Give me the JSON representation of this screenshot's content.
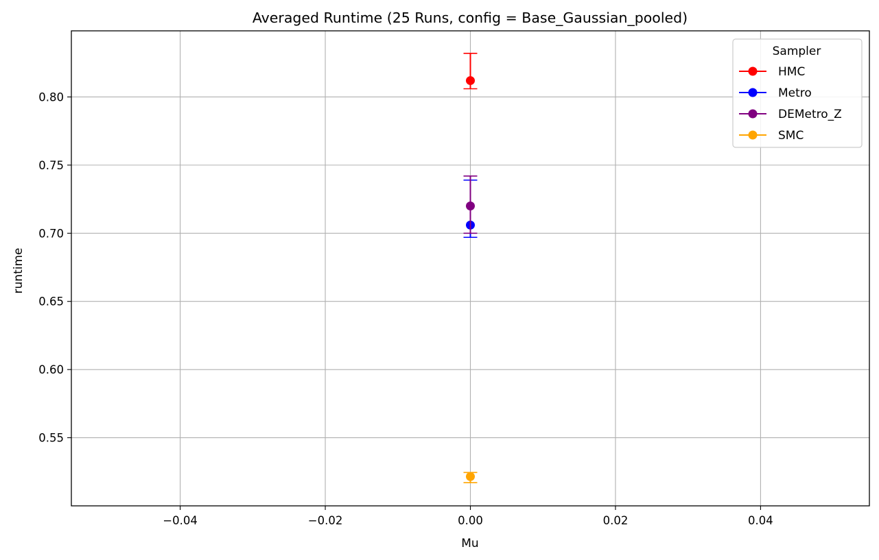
{
  "chart_data": {
    "type": "scatter",
    "title": "Averaged Runtime (25 Runs, config = Base_Gaussian_pooled)",
    "xlabel": "Mu",
    "ylabel": "runtime",
    "xlim": [
      -0.055,
      0.055
    ],
    "ylim": [
      0.5,
      0.8485
    ],
    "grid": true,
    "xticks": [
      -0.04,
      -0.02,
      0.0,
      0.02,
      0.04
    ],
    "xtick_labels": [
      "−0.04",
      "−0.02",
      "0.00",
      "0.02",
      "0.04"
    ],
    "yticks": [
      0.55,
      0.6,
      0.65,
      0.7,
      0.75,
      0.8
    ],
    "ytick_labels": [
      "0.55",
      "0.60",
      "0.65",
      "0.70",
      "0.75",
      "0.80"
    ],
    "legend": {
      "title": "Sampler",
      "placement": "top-right"
    },
    "series": [
      {
        "name": "HMC",
        "color": "#ff0000",
        "x": [
          0.0
        ],
        "y": [
          0.812
        ],
        "err_low": [
          0.806
        ],
        "err_high": [
          0.832
        ]
      },
      {
        "name": "Metro",
        "color": "#0000ff",
        "x": [
          0.0
        ],
        "y": [
          0.706
        ],
        "err_low": [
          0.697
        ],
        "err_high": [
          0.739
        ]
      },
      {
        "name": "DEMetro_Z",
        "color": "#800080",
        "x": [
          0.0
        ],
        "y": [
          0.72
        ],
        "err_low": [
          0.7
        ],
        "err_high": [
          0.742
        ]
      },
      {
        "name": "SMC",
        "color": "#ffa500",
        "x": [
          0.0
        ],
        "y": [
          0.5215
        ],
        "err_low": [
          0.517
        ],
        "err_high": [
          0.5245
        ]
      }
    ]
  }
}
